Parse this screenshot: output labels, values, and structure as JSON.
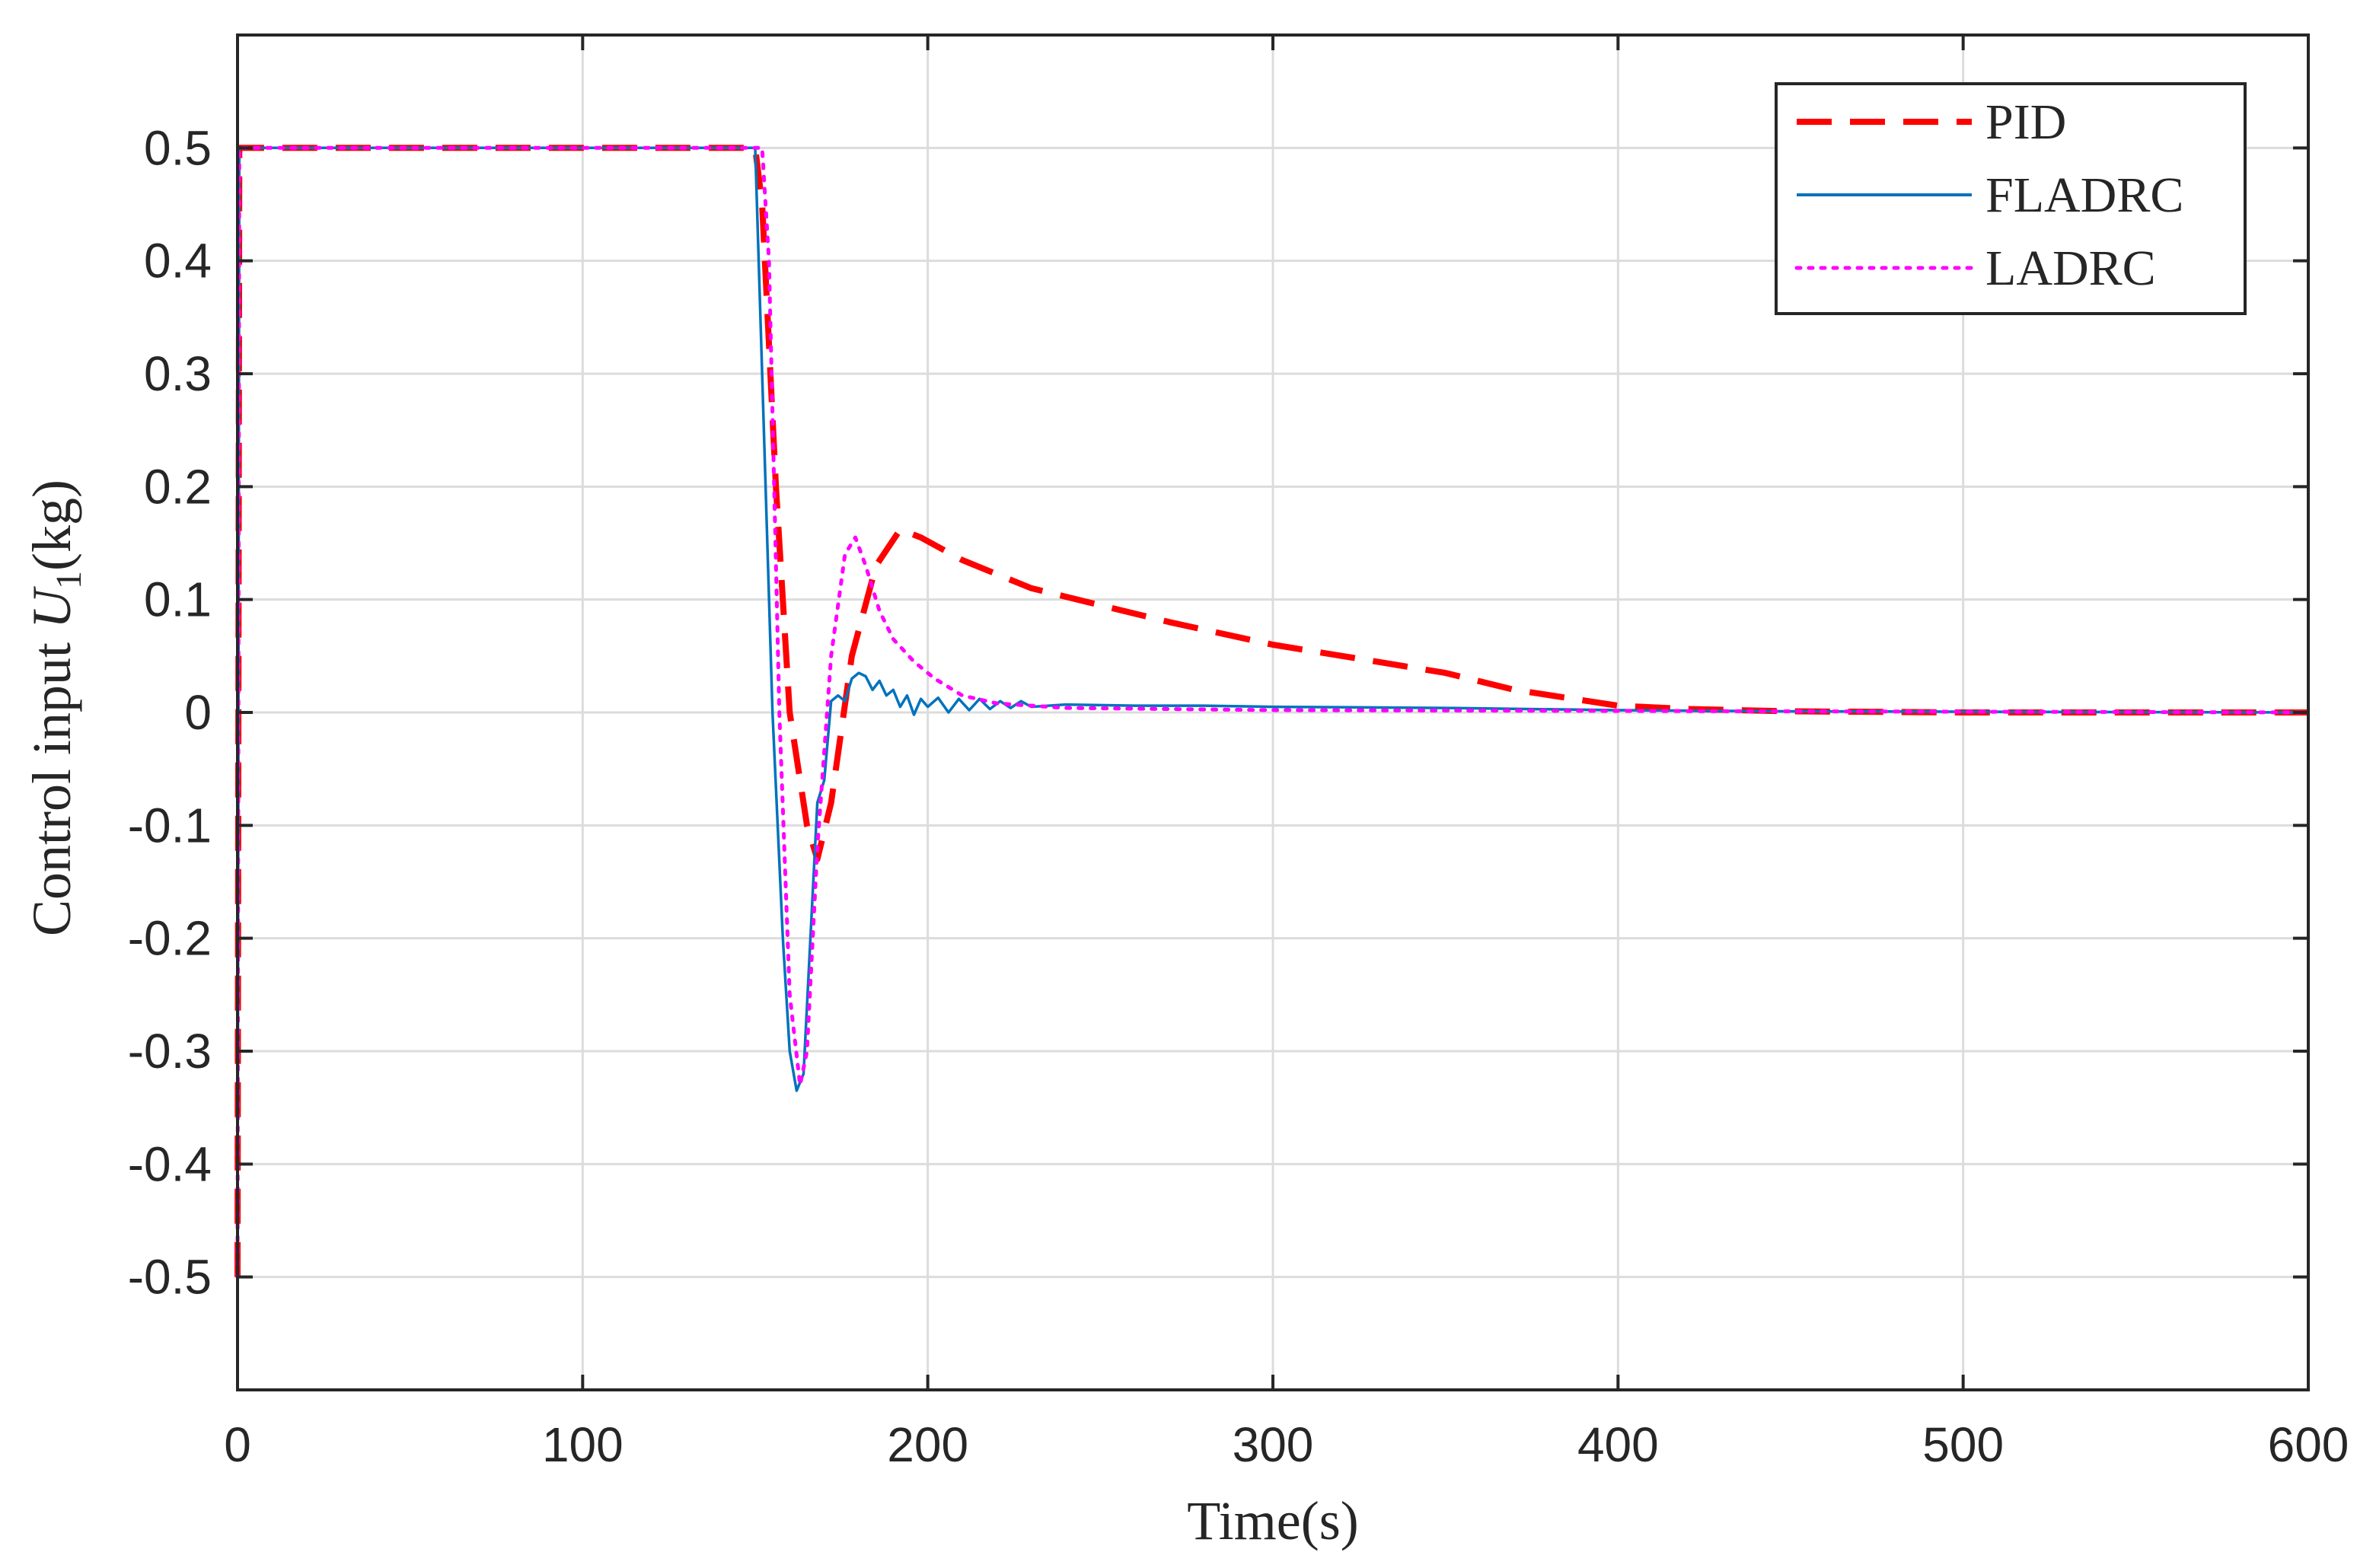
{
  "chart_data": {
    "type": "line",
    "title": "",
    "xlabel": "Time(s)",
    "ylabel": "Control input U1(kg)",
    "ylabel_parts": {
      "prefix": "Control input ",
      "var": "U",
      "sub": "1",
      "suffix": "(kg)"
    },
    "xlim": [
      0,
      600
    ],
    "ylim": [
      -0.6,
      0.6
    ],
    "xticks": [
      0,
      100,
      200,
      300,
      400,
      500,
      600
    ],
    "xtick_labels": [
      "0",
      "100",
      "200",
      "300",
      "400",
      "500",
      "600"
    ],
    "yticks": [
      0.5,
      0.4,
      0.3,
      0.2,
      0.1,
      0,
      -0.1,
      -0.2,
      -0.3,
      -0.4,
      -0.5
    ],
    "ytick_labels": [
      "0.5",
      "0.4",
      "0.3",
      "0.2",
      "0.1",
      "0",
      "-0.1",
      "-0.2",
      "-0.3",
      "-0.4",
      "-0.5"
    ],
    "grid": true,
    "legend_position": "top-right",
    "series": [
      {
        "name": "PID",
        "color": "#ff0000",
        "style": "dashed",
        "x": [
          0,
          0.5,
          150,
          152,
          156,
          160,
          165,
          168,
          172,
          178,
          185,
          192,
          198,
          210,
          230,
          250,
          270,
          300,
          330,
          350,
          370,
          400,
          420,
          450,
          500,
          600
        ],
        "y": [
          -0.5,
          0.5,
          0.5,
          0.45,
          0.2,
          0.0,
          -0.1,
          -0.13,
          -0.08,
          0.05,
          0.13,
          0.162,
          0.155,
          0.135,
          0.11,
          0.095,
          0.08,
          0.06,
          0.045,
          0.035,
          0.02,
          0.006,
          0.003,
          0.001,
          0.0,
          0.0
        ]
      },
      {
        "name": "FLADRC",
        "color": "#0072bd",
        "style": "solid",
        "x": [
          0,
          0.5,
          150,
          152,
          155,
          158,
          160,
          162,
          164,
          166,
          168,
          170,
          172,
          174,
          176,
          178,
          180,
          182,
          184,
          186,
          188,
          190,
          192,
          194,
          196,
          198,
          200,
          203,
          206,
          209,
          212,
          215,
          218,
          221,
          224,
          227,
          230,
          240,
          260,
          280,
          300,
          350,
          400,
          450,
          600
        ],
        "y": [
          -0.5,
          0.5,
          0.5,
          0.3,
          0.0,
          -0.2,
          -0.3,
          -0.335,
          -0.32,
          -0.2,
          -0.08,
          -0.06,
          0.01,
          0.015,
          0.01,
          0.03,
          0.035,
          0.032,
          0.02,
          0.028,
          0.015,
          0.02,
          0.005,
          0.015,
          -0.002,
          0.012,
          0.005,
          0.013,
          0.0,
          0.012,
          0.002,
          0.012,
          0.003,
          0.01,
          0.004,
          0.01,
          0.005,
          0.007,
          0.006,
          0.006,
          0.005,
          0.004,
          0.002,
          0.001,
          0.0
        ]
      },
      {
        "name": "LADRC",
        "color": "#ff00ff",
        "style": "dotted",
        "x": [
          0,
          0.5,
          152,
          154,
          157,
          160,
          163,
          165,
          168,
          172,
          176,
          179,
          182,
          186,
          190,
          196,
          202,
          210,
          220,
          240,
          300,
          600
        ],
        "y": [
          -0.5,
          0.5,
          0.5,
          0.4,
          0.0,
          -0.25,
          -0.33,
          -0.3,
          -0.12,
          0.05,
          0.14,
          0.155,
          0.13,
          0.09,
          0.065,
          0.045,
          0.03,
          0.015,
          0.008,
          0.004,
          0.002,
          0.0
        ]
      }
    ]
  }
}
